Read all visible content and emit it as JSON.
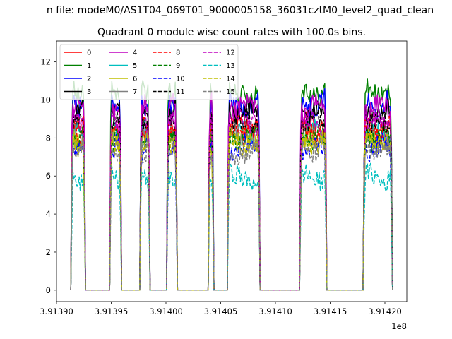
{
  "figure": {
    "suptitle": "n file: modeM0/AS1T04_069T01_9000005158_36031cztM0_level2_quad_clean",
    "title": "Quadrant 0 module wise count rates with 100.0s bins."
  },
  "chart_data": {
    "type": "line",
    "title": "Quadrant 0 module wise count rates with 100.0s bins.",
    "xlabel": "",
    "ylabel": "",
    "x_offset_label": "1e8",
    "xlim": [
      391390000,
      391422000
    ],
    "ylim": [
      -0.6,
      13.1
    ],
    "x_ticks": [
      391390000,
      391395000,
      391400000,
      391405000,
      391410000,
      391415000,
      391420000
    ],
    "x_tick_labels": [
      "3.91390",
      "3.91395",
      "3.91400",
      "3.91405",
      "3.91410",
      "3.91415",
      "3.91420"
    ],
    "y_ticks": [
      0,
      2,
      4,
      6,
      8,
      10,
      12
    ],
    "y_tick_labels": [
      "0",
      "2",
      "4",
      "6",
      "8",
      "10",
      "12"
    ],
    "grid": false,
    "legend_placement": "top-left",
    "legend_columns": 4,
    "bin_seconds": 100,
    "on_segments": [
      [
        391391400,
        391392550
      ],
      [
        391394950,
        391395850
      ],
      [
        391397700,
        391398450
      ],
      [
        391400150,
        391400950
      ],
      [
        391403950,
        391404280
      ],
      [
        391405700,
        391408500
      ],
      [
        391412300,
        391414600
      ],
      [
        391418100,
        391420600
      ]
    ],
    "series": [
      {
        "name": "0",
        "color": "#ff0000",
        "dash": "solid",
        "level": 8.6
      },
      {
        "name": "1",
        "color": "#008000",
        "dash": "solid",
        "level": 10.4
      },
      {
        "name": "2",
        "color": "#0000ff",
        "dash": "solid",
        "level": 9.8
      },
      {
        "name": "3",
        "color": "#000000",
        "dash": "solid",
        "level": 9.4
      },
      {
        "name": "4",
        "color": "#bf00bf",
        "dash": "solid",
        "level": 9.6
      },
      {
        "name": "5",
        "color": "#00bfbf",
        "dash": "solid",
        "level": 8.2
      },
      {
        "name": "6",
        "color": "#bfbf00",
        "dash": "solid",
        "level": 7.9
      },
      {
        "name": "7",
        "color": "#808080",
        "dash": "solid",
        "level": 8.1
      },
      {
        "name": "8",
        "color": "#ff0000",
        "dash": "dashed",
        "level": 8.4
      },
      {
        "name": "9",
        "color": "#008000",
        "dash": "dashed",
        "level": 8.0
      },
      {
        "name": "10",
        "color": "#0000ff",
        "dash": "dashed",
        "level": 7.5
      },
      {
        "name": "11",
        "color": "#000000",
        "dash": "dashed",
        "level": 8.8
      },
      {
        "name": "12",
        "color": "#bf00bf",
        "dash": "dashed",
        "level": 8.9
      },
      {
        "name": "13",
        "color": "#00bfbf",
        "dash": "dashed",
        "level": 5.9
      },
      {
        "name": "14",
        "color": "#bfbf00",
        "dash": "dashed",
        "level": 7.8
      },
      {
        "name": "15",
        "color": "#808080",
        "dash": "dashed",
        "level": 7.3
      }
    ]
  }
}
